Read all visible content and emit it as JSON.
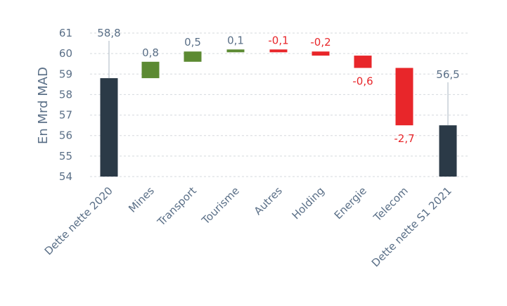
{
  "chart_data": {
    "type": "bar",
    "subtype": "waterfall",
    "ylabel": "En Mrd MAD",
    "ylim": [
      54,
      61
    ],
    "yticks": [
      "54",
      "55",
      "56",
      "57",
      "58",
      "59",
      "60",
      "61"
    ],
    "grid": true,
    "categories": [
      "Dette nette 2020",
      "Mines",
      "Transport",
      "Tourisme",
      "Autres",
      "Holding",
      "Energie",
      "Telecom",
      "Dette nette S1 2021"
    ],
    "bars": [
      {
        "kind": "total",
        "start": 54,
        "end": 58.8,
        "label": "58,8"
      },
      {
        "kind": "increase",
        "start": 58.8,
        "end": 59.6,
        "label": "0,8"
      },
      {
        "kind": "increase",
        "start": 59.6,
        "end": 60.1,
        "label": "0,5"
      },
      {
        "kind": "increase",
        "start": 60.1,
        "end": 60.2,
        "label": "0,1"
      },
      {
        "kind": "decrease",
        "start": 60.2,
        "end": 60.1,
        "label": "-0,1"
      },
      {
        "kind": "decrease",
        "start": 60.1,
        "end": 59.9,
        "label": "-0,2"
      },
      {
        "kind": "decrease",
        "start": 59.9,
        "end": 59.3,
        "label": "-0,6"
      },
      {
        "kind": "decrease",
        "start": 59.3,
        "end": 56.5,
        "label": "-2,7"
      },
      {
        "kind": "total",
        "start": 54,
        "end": 56.5,
        "label": "56,5"
      }
    ],
    "colors": {
      "total": "#2b3a47",
      "increase": "#5c8a32",
      "decrease": "#e8262a",
      "axis_text": "#5a6f87",
      "positive_label": "#5a6f87",
      "negative_label": "#e8262a"
    }
  }
}
